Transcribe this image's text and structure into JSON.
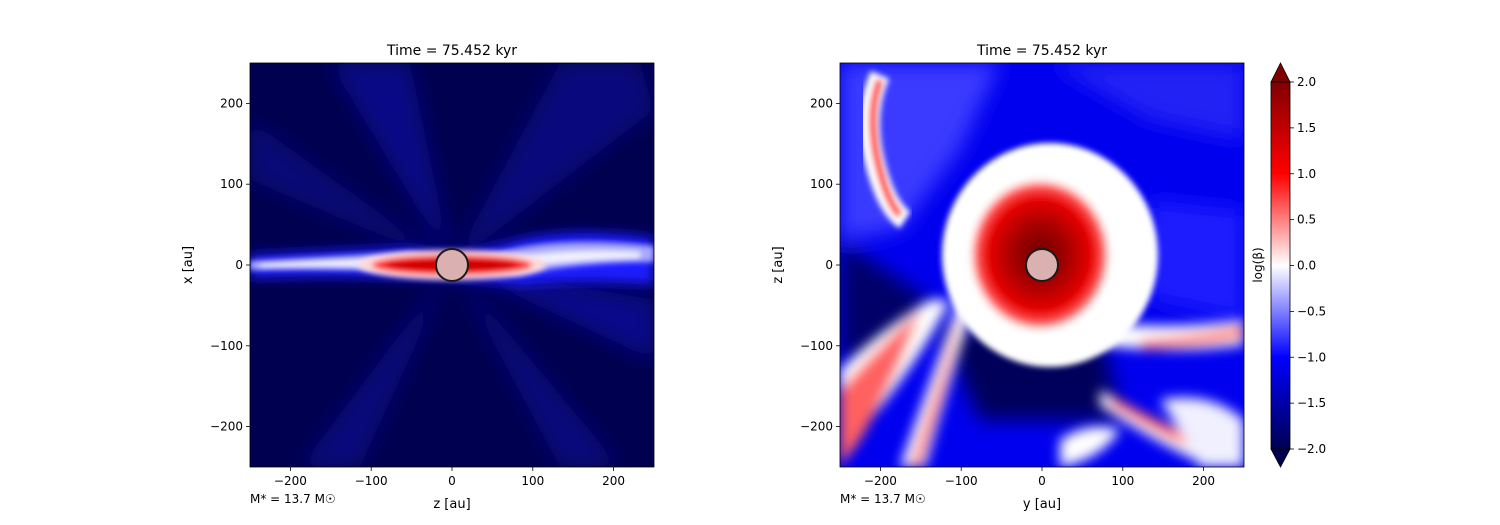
{
  "colors": {
    "neg_deep": "#000050",
    "neg_mid": "#0000ff",
    "neutral": "#ffffff",
    "pos_mid": "#ff0000",
    "pos_deep": "#800000",
    "star_fill": "#dbb0b0",
    "star_edge": "#1a1a1a"
  },
  "chart_data": [
    {
      "type": "heatmap",
      "title": "Time = 75.452 kyr",
      "xlabel": "z [au]",
      "ylabel": "x [au]",
      "xlim": [
        -250,
        250
      ],
      "ylim": [
        -250,
        250
      ],
      "xticks": [
        -200,
        -100,
        0,
        100,
        200
      ],
      "yticks": [
        -200,
        -100,
        0,
        100,
        200
      ],
      "annotation": "M$_*$ = 13.7 M$_\\odot$",
      "annotation_text": "M* = 13.7 M☉",
      "star": {
        "x": 0,
        "y": 0,
        "radius": 20
      },
      "field": "log(beta), mostly low (~-2); thin equatorial disk of high beta (>1.5) near center along the horizontal axis, low-level wispy outflow lobes"
    },
    {
      "type": "heatmap",
      "title": "Time = 75.452 kyr",
      "xlabel": "y [au]",
      "ylabel": "z [au]",
      "xlim": [
        -250,
        250
      ],
      "ylim": [
        -250,
        250
      ],
      "xticks": [
        -200,
        -100,
        0,
        100,
        200
      ],
      "yticks": [
        -200,
        -100,
        0,
        100,
        200
      ],
      "annotation": "M$_*$ = 13.7 M$_\\odot$",
      "annotation_text": "M* = 13.7 M☉",
      "star": {
        "x": 0,
        "y": 0,
        "radius": 20
      },
      "field": "log(beta), background ~-1; large high-beta bubble (~2) around center radius ~70 au; red filaments at lower-left and along arcs"
    }
  ],
  "colorbar": {
    "label": "log(β)",
    "vmin": -2.0,
    "vmax": 2.0,
    "ticks": [
      -2.0,
      -1.5,
      -1.0,
      -0.5,
      0.0,
      0.5,
      1.0,
      1.5,
      2.0
    ],
    "tick_labels": [
      "−2.0",
      "−1.5",
      "−1.0",
      "−0.5",
      "0.0",
      "0.5",
      "1.0",
      "1.5",
      "2.0"
    ],
    "extend": "both"
  },
  "tick_labels": [
    "−200",
    "−100",
    "0",
    "100",
    "200"
  ]
}
